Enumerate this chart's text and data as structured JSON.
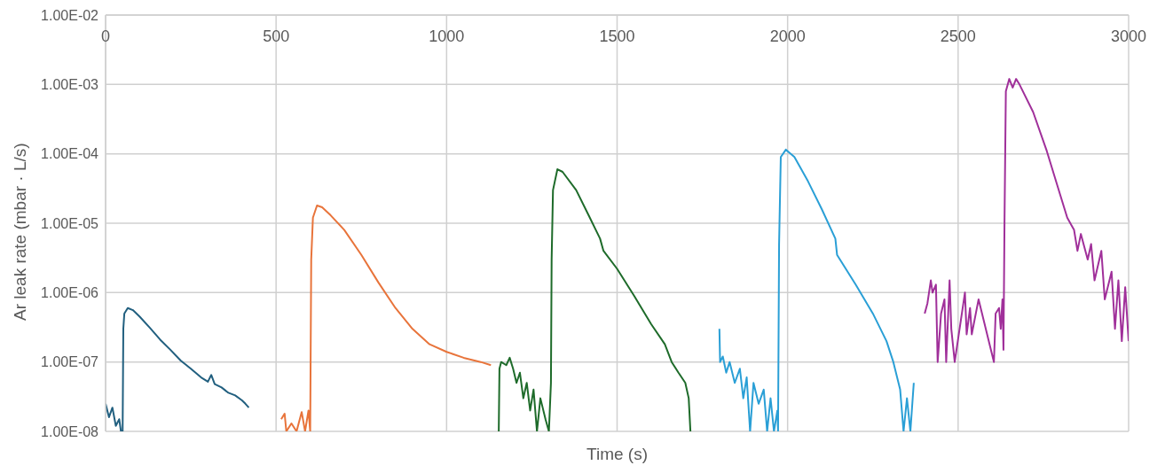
{
  "chart_data": {
    "type": "line",
    "xlabel": "Time (s)",
    "ylabel": "Ar leak rate (mbar · L/s)",
    "log": "y",
    "grid": true,
    "marker": "none",
    "line_style": "solid",
    "xlim": [
      0,
      3000
    ],
    "xticks": [
      0,
      500,
      1000,
      1500,
      2000,
      2500,
      3000
    ],
    "ylim": [
      1e-08,
      0.01
    ],
    "yticks": [
      {
        "value": 1e-08,
        "label": "1.00E-08"
      },
      {
        "value": 1e-07,
        "label": "1.00E-07"
      },
      {
        "value": 1e-06,
        "label": "1.00E-06"
      },
      {
        "value": 1e-05,
        "label": "1.00E-05"
      },
      {
        "value": 0.0001,
        "label": "1.00E-04"
      },
      {
        "value": 0.001,
        "label": "1.00E-03"
      },
      {
        "value": 0.01,
        "label": "1.00E-02"
      }
    ],
    "series": [
      {
        "color": "#215f7f",
        "x": [
          0,
          10,
          20,
          30,
          40,
          45,
          50,
          52,
          55,
          65,
          80,
          100,
          130,
          160,
          190,
          220,
          250,
          280,
          300,
          310,
          320,
          340,
          360,
          380,
          400,
          410,
          420
        ],
        "values": [
          2.5e-08,
          1.6e-08,
          2.2e-08,
          1.2e-08,
          1.5e-08,
          1e-08,
          1e-08,
          3e-07,
          5e-07,
          6e-07,
          5.6e-07,
          4.5e-07,
          3.1e-07,
          2.1e-07,
          1.5e-07,
          1.05e-07,
          8e-08,
          6e-08,
          5.2e-08,
          6.5e-08,
          4.8e-08,
          4.3e-08,
          3.6e-08,
          3.3e-08,
          2.8e-08,
          2.5e-08,
          2.2e-08
        ]
      },
      {
        "color": "#e8743b",
        "x": [
          515,
          525,
          530,
          545,
          560,
          575,
          585,
          595,
          600,
          603,
          608,
          620,
          635,
          660,
          700,
          750,
          800,
          850,
          900,
          950,
          1000,
          1050,
          1100,
          1130
        ],
        "values": [
          1.5e-08,
          1.8e-08,
          1e-08,
          1.3e-08,
          1e-08,
          1.9e-08,
          1e-08,
          2e-08,
          1e-08,
          3e-06,
          1.2e-05,
          1.8e-05,
          1.7e-05,
          1.3e-05,
          8e-06,
          3.5e-06,
          1.4e-06,
          6e-07,
          3e-07,
          1.8e-07,
          1.4e-07,
          1.15e-07,
          1e-07,
          9e-08
        ]
      },
      {
        "color": "#1e6b2a",
        "x": [
          1153,
          1155,
          1160,
          1175,
          1185,
          1195,
          1205,
          1215,
          1225,
          1235,
          1245,
          1255,
          1265,
          1275,
          1290,
          1300,
          1306,
          1308,
          1312,
          1325,
          1340,
          1380,
          1420,
          1450,
          1460,
          1500,
          1550,
          1600,
          1640,
          1660,
          1680,
          1700,
          1710,
          1715
        ],
        "values": [
          1e-08,
          8e-08,
          1e-07,
          9e-08,
          1.15e-07,
          8e-08,
          5e-08,
          7e-08,
          3e-08,
          5e-08,
          2e-08,
          4e-08,
          1e-08,
          3e-08,
          1.5e-08,
          1e-08,
          5e-08,
          3e-06,
          3e-05,
          6e-05,
          5.5e-05,
          3e-05,
          1.2e-05,
          6e-06,
          4e-06,
          2.2e-06,
          9e-07,
          3.5e-07,
          1.8e-07,
          1e-07,
          7e-08,
          5e-08,
          3e-08,
          1e-08
        ]
      },
      {
        "color": "#2a9fd6",
        "x": [
          1800,
          1802,
          1810,
          1820,
          1830,
          1845,
          1860,
          1870,
          1880,
          1890,
          1900,
          1915,
          1930,
          1940,
          1950,
          1960,
          1970,
          1972,
          1975,
          1980,
          1995,
          2020,
          2060,
          2100,
          2140,
          2145,
          2200,
          2250,
          2290,
          2310,
          2330,
          2340,
          2350,
          2360,
          2370
        ],
        "values": [
          3e-07,
          1e-07,
          1.2e-07,
          7e-08,
          1e-07,
          5e-08,
          8e-08,
          3e-08,
          6e-08,
          1e-08,
          5e-08,
          2.5e-08,
          4e-08,
          1e-08,
          3e-08,
          1e-08,
          2e-08,
          1e-08,
          5e-06,
          9e-05,
          0.000115,
          9e-05,
          4e-05,
          1.6e-05,
          6e-06,
          3.5e-06,
          1.3e-06,
          5e-07,
          2e-07,
          1e-07,
          4e-08,
          1e-08,
          3e-08,
          1e-08,
          5e-08
        ]
      },
      {
        "color": "#a0309a",
        "x": [
          2402,
          2410,
          2420,
          2425,
          2435,
          2440,
          2450,
          2460,
          2465,
          2475,
          2480,
          2490,
          2520,
          2525,
          2535,
          2540,
          2560,
          2605,
          2610,
          2620,
          2625,
          2630,
          2633,
          2636,
          2640,
          2650,
          2660,
          2670,
          2680,
          2720,
          2760,
          2800,
          2820,
          2840,
          2850,
          2860,
          2880,
          2890,
          2900,
          2920,
          2930,
          2950,
          2960,
          2970,
          2980,
          2990,
          3000
        ],
        "values": [
          5e-07,
          7e-07,
          1.5e-06,
          1e-06,
          1.3e-06,
          1e-07,
          5e-07,
          8e-07,
          1e-07,
          1.5e-06,
          3e-07,
          1e-07,
          1e-06,
          2.5e-07,
          6e-07,
          2.5e-07,
          8e-07,
          1e-07,
          5e-07,
          6e-07,
          3e-07,
          8e-07,
          1.5e-07,
          1e-05,
          0.0008,
          0.0012,
          0.0009,
          0.0012,
          0.001,
          0.0004,
          0.00011,
          2.5e-05,
          1.2e-05,
          8e-06,
          4e-06,
          7e-06,
          3e-06,
          5e-06,
          1.5e-06,
          4e-06,
          8e-07,
          2e-06,
          3e-07,
          1.5e-06,
          2e-07,
          1.2e-06,
          2e-07
        ]
      }
    ]
  }
}
